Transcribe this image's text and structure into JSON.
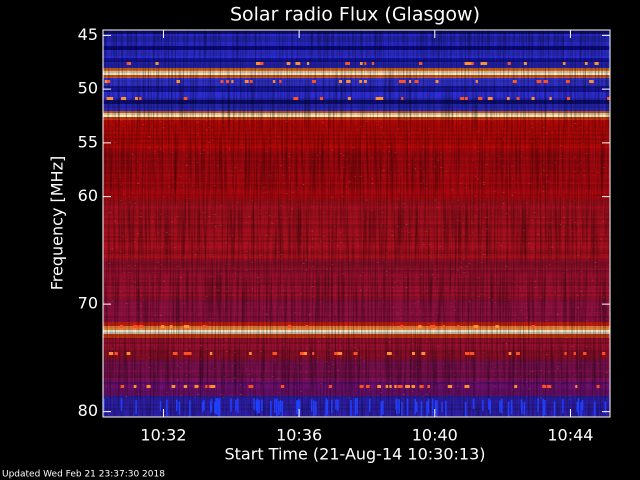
{
  "chart_data": {
    "type": "spectrogram",
    "title": "Solar radio Flux (Glasgow)",
    "x_label": "Start Time (21-Aug-14 10:30:13)",
    "y_label": "Frequency [MHz]",
    "footer": "Updated Wed Feb 21 23:37:30 2018",
    "xlim": [
      "10:30:13",
      "10:45:10"
    ],
    "xticks": [
      "10:32",
      "10:36",
      "10:40",
      "10:44"
    ],
    "ylim": [
      44.5,
      80.5
    ],
    "yticks": [
      45,
      50,
      55,
      60,
      70,
      80
    ],
    "y_inverted": true
  }
}
